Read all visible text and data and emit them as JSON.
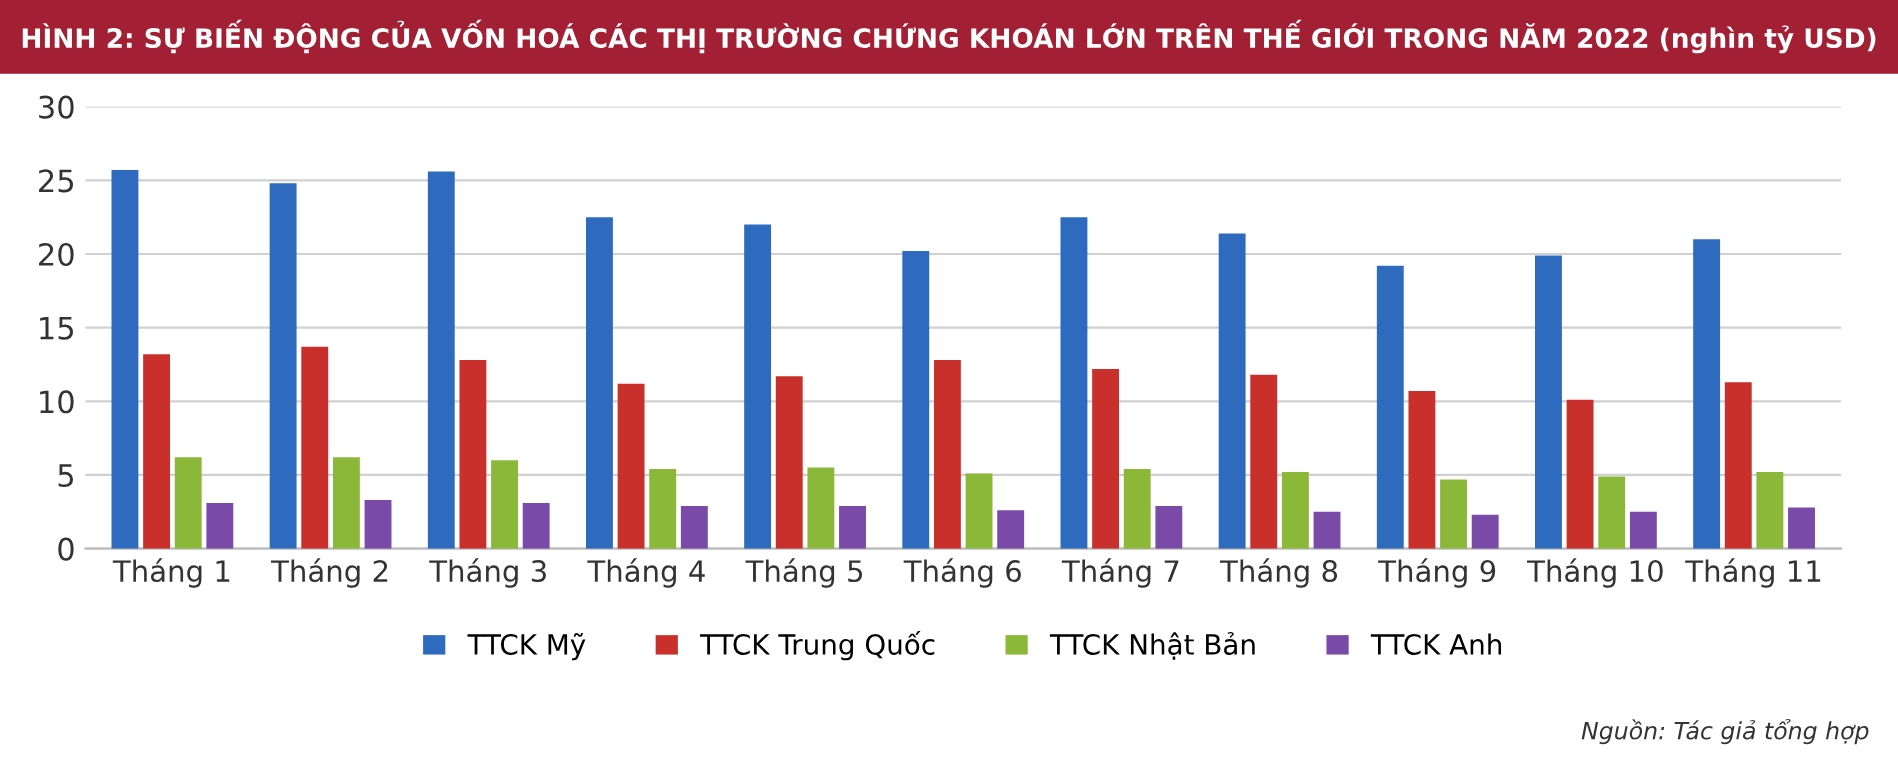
{
  "chart_data": {
    "type": "bar",
    "title": "HÌNH 2: SỰ BIẾN ĐỘNG CỦA VỐN HOÁ CÁC THỊ TRƯỜNG CHỨNG KHOÁN LỚN TRÊN THẾ GIỚI TRONG NĂM 2022 (nghìn tỷ USD)",
    "categories": [
      "Tháng 1",
      "Tháng 2",
      "Tháng 3",
      "Tháng 4",
      "Tháng 5",
      "Tháng 6",
      "Tháng 7",
      "Tháng 8",
      "Tháng 9",
      "Tháng 10",
      "Tháng 11"
    ],
    "series": [
      {
        "name": "TTCK Mỹ",
        "color": "#2e6bbf",
        "values": [
          25.7,
          24.8,
          25.6,
          22.5,
          22.0,
          20.2,
          22.5,
          21.4,
          19.2,
          19.9,
          21.0
        ]
      },
      {
        "name": "TTCK Trung Quốc",
        "color": "#c9302c",
        "values": [
          13.2,
          13.7,
          12.8,
          11.2,
          11.7,
          12.8,
          12.2,
          11.8,
          10.7,
          10.1,
          11.3
        ]
      },
      {
        "name": "TTCK Nhật Bản",
        "color": "#8cb83a",
        "values": [
          6.2,
          6.2,
          6.0,
          5.4,
          5.5,
          5.1,
          5.4,
          5.2,
          4.7,
          4.9,
          5.2
        ]
      },
      {
        "name": "TTCK Anh",
        "color": "#7a4aa8",
        "values": [
          3.1,
          3.3,
          3.1,
          2.9,
          2.9,
          2.6,
          2.9,
          2.5,
          2.3,
          2.5,
          2.8
        ]
      }
    ],
    "ylim": [
      0,
      30
    ],
    "yticks": [
      0,
      5,
      10,
      15,
      20,
      25,
      30
    ],
    "grid": "y",
    "legend": "bottom",
    "annotations": [
      "Nguồn: Tác giả tổng hợp"
    ]
  }
}
